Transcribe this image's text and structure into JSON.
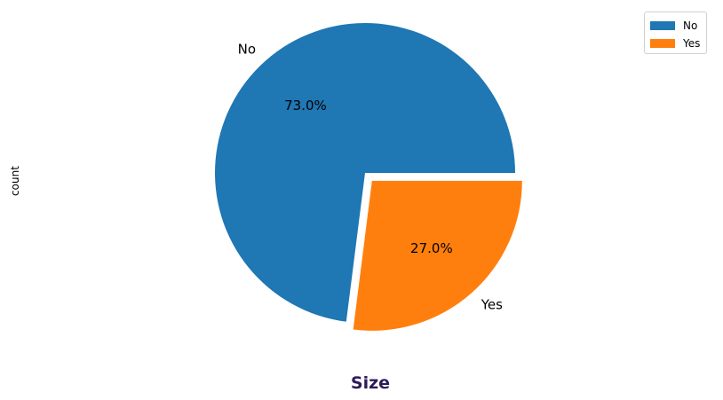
{
  "chart_data": {
    "type": "pie",
    "title": "Size",
    "ylabel": "count",
    "slices": [
      {
        "label": "No",
        "value": 73.0,
        "pct_label": "73.0%",
        "color": "#1f77b4",
        "exploded": false
      },
      {
        "label": "Yes",
        "value": 27.0,
        "pct_label": "27.0%",
        "color": "#ff7f0e",
        "exploded": true
      }
    ],
    "legend": {
      "placement": "top-right",
      "entries": [
        {
          "label": "No",
          "color": "#1f77b4"
        },
        {
          "label": "Yes",
          "color": "#ff7f0e"
        }
      ]
    },
    "title_color": "#2e1a5a"
  }
}
